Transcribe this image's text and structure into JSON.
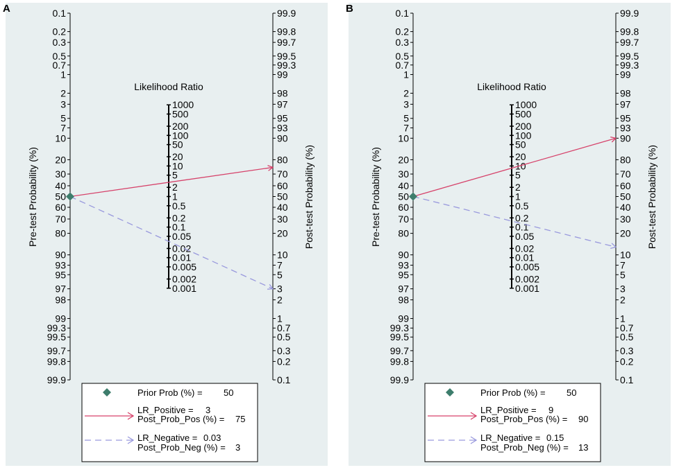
{
  "chart_data": [
    {
      "type": "fagan-nomogram",
      "panel_label": "A",
      "title": "Likelihood Ratio",
      "left_axis_label": "Pre-test Probability (%)",
      "right_axis_label": "Post-test Probability (%)",
      "pre_ticks": [
        "0.1",
        "0.2",
        "0.3",
        "0.5",
        "0.7",
        "1",
        "2",
        "3",
        "5",
        "7",
        "10",
        "20",
        "30",
        "40",
        "50",
        "60",
        "70",
        "80",
        "90",
        "93",
        "95",
        "97",
        "98",
        "99",
        "99.3",
        "99.5",
        "99.7",
        "99.8",
        "99.9"
      ],
      "post_ticks": [
        "99.9",
        "99.8",
        "99.7",
        "99.5",
        "99.3",
        "99",
        "98",
        "97",
        "95",
        "93",
        "90",
        "80",
        "70",
        "60",
        "50",
        "40",
        "30",
        "20",
        "10",
        "7",
        "5",
        "3",
        "2",
        "1",
        "0.7",
        "0.5",
        "0.3",
        "0.2",
        "0.1"
      ],
      "lr_ticks": [
        "1000",
        "500",
        "200",
        "100",
        "50",
        "20",
        "10",
        "5",
        "2",
        "1",
        "0.5",
        "0.2",
        "0.1",
        "0.05",
        "0.02",
        "0.01",
        "0.005",
        "0.002",
        "0.001"
      ],
      "prior_prob": 50,
      "lr_positive": 3,
      "post_prob_pos": 75,
      "lr_negative": 0.03,
      "post_prob_neg": 3,
      "legend": {
        "prior_label": "Prior Prob (%) =",
        "prior_value": "50",
        "lrpos_label": "LR_Positive =",
        "lrpos_value": "3",
        "postpos_label": "Post_Prob_Pos (%) =",
        "postpos_value": "75",
        "lrneg_label": "LR_Negative =",
        "lrneg_value": "0.03",
        "postneg_label": "Post_Prob_Neg (%) =",
        "postneg_value": "3"
      },
      "colors": {
        "positive": "#d6426a",
        "negative": "#9999dd",
        "marker": "#3d7d6c",
        "background": "#e8eff0"
      }
    },
    {
      "type": "fagan-nomogram",
      "panel_label": "B",
      "title": "Likelihood Ratio",
      "left_axis_label": "Pre-test Probability (%)",
      "right_axis_label": "Post-test Probability (%)",
      "pre_ticks": [
        "0.1",
        "0.2",
        "0.3",
        "0.5",
        "0.7",
        "1",
        "2",
        "3",
        "5",
        "7",
        "10",
        "20",
        "30",
        "40",
        "50",
        "60",
        "70",
        "80",
        "90",
        "93",
        "95",
        "97",
        "98",
        "99",
        "99.3",
        "99.5",
        "99.7",
        "99.8",
        "99.9"
      ],
      "post_ticks": [
        "99.9",
        "99.8",
        "99.7",
        "99.5",
        "99.3",
        "99",
        "98",
        "97",
        "95",
        "93",
        "90",
        "80",
        "70",
        "60",
        "50",
        "40",
        "30",
        "20",
        "10",
        "7",
        "5",
        "3",
        "2",
        "1",
        "0.7",
        "0.5",
        "0.3",
        "0.2",
        "0.1"
      ],
      "lr_ticks": [
        "1000",
        "500",
        "200",
        "100",
        "50",
        "20",
        "10",
        "5",
        "2",
        "1",
        "0.5",
        "0.2",
        "0.1",
        "0.05",
        "0.02",
        "0.01",
        "0.005",
        "0.002",
        "0.001"
      ],
      "prior_prob": 50,
      "lr_positive": 9,
      "post_prob_pos": 90,
      "lr_negative": 0.15,
      "post_prob_neg": 13,
      "legend": {
        "prior_label": "Prior Prob (%) =",
        "prior_value": "50",
        "lrpos_label": "LR_Positive =",
        "lrpos_value": "9",
        "postpos_label": "Post_Prob_Pos (%) =",
        "postpos_value": "90",
        "lrneg_label": "LR_Negative =",
        "lrneg_value": "0.15",
        "postneg_label": "Post_Prob_Neg (%) =",
        "postneg_value": "13"
      },
      "colors": {
        "positive": "#d6426a",
        "negative": "#9999dd",
        "marker": "#3d7d6c",
        "background": "#e8eff0"
      }
    }
  ]
}
